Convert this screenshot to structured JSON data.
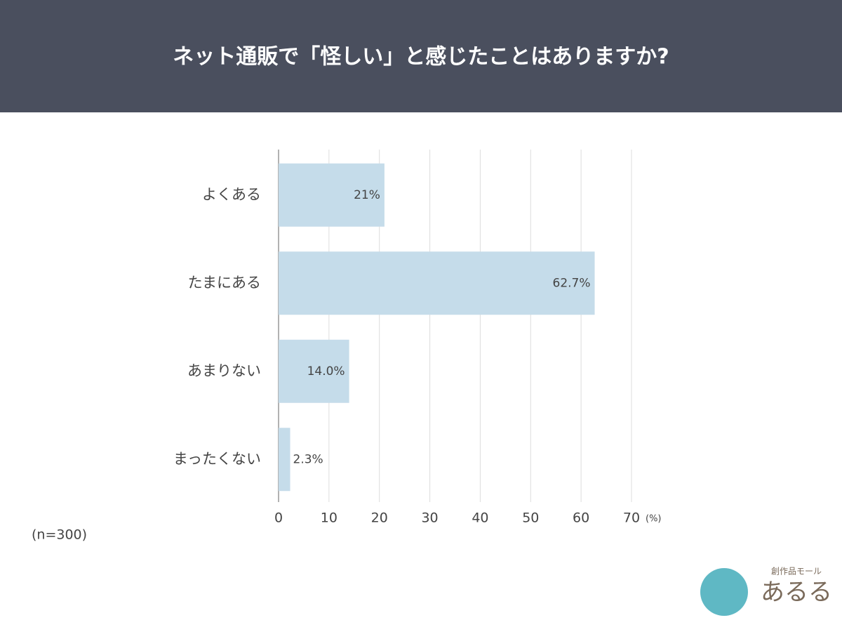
{
  "chart_data": {
    "type": "hbar",
    "title": "ネット通販で「怪しい」と感じたことはありますか?",
    "categories": [
      "よくある",
      "たまにある",
      "あまりない",
      "まったくない"
    ],
    "values": [
      21,
      62.7,
      14.0,
      2.3
    ],
    "value_labels": [
      "21%",
      "62.7%",
      "14.0%",
      "2.3%"
    ],
    "color": "#c5dcea",
    "xlim": [
      0,
      70
    ],
    "xticks": [
      0,
      10,
      20,
      30,
      40,
      50,
      60,
      70
    ],
    "x_unit": "(%)",
    "grid": true,
    "note": "(n=300)",
    "logo_caption": "創作品モール",
    "logo_name": "あるる"
  }
}
